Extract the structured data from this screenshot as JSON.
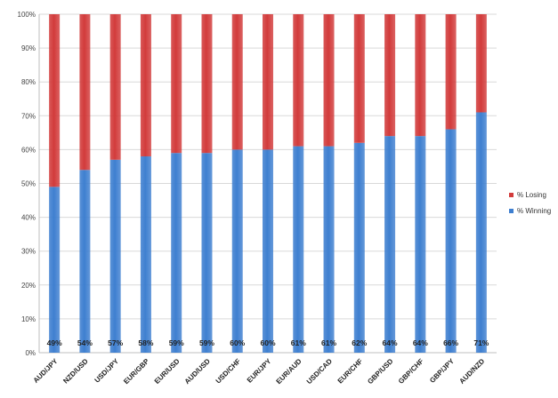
{
  "chart_data": {
    "type": "bar",
    "stacked": true,
    "percent_stacked": true,
    "categories": [
      "AUD/JPY",
      "NZD/USD",
      "USD/JPY",
      "EUR/GBP",
      "EUR/USD",
      "AUD/USD",
      "USD/CHF",
      "EUR/JPY",
      "EUR/AUD",
      "USD/CAD",
      "EUR/CHF",
      "GBP/USD",
      "GBP/CHF",
      "GBP/JPY",
      "AUD/NZD"
    ],
    "series": [
      {
        "name": "% Winning",
        "color": "#3e7fd0",
        "values": [
          49,
          54,
          57,
          58,
          59,
          59,
          60,
          60,
          61,
          61,
          62,
          64,
          64,
          66,
          71
        ]
      },
      {
        "name": "% Losing",
        "color": "#d23b3b",
        "values": [
          51,
          46,
          43,
          42,
          41,
          41,
          40,
          40,
          39,
          39,
          38,
          36,
          36,
          34,
          29
        ]
      }
    ],
    "data_labels": [
      "49%",
      "54%",
      "57%",
      "58%",
      "59%",
      "59%",
      "60%",
      "60%",
      "61%",
      "61%",
      "62%",
      "64%",
      "64%",
      "66%",
      "71%"
    ],
    "y_ticks": [
      "0%",
      "10%",
      "20%",
      "30%",
      "40%",
      "50%",
      "60%",
      "70%",
      "80%",
      "90%",
      "100%"
    ],
    "ylim": [
      0,
      100
    ],
    "grid": true,
    "legend_position": "right",
    "legend_order": [
      "% Losing",
      "% Winning"
    ]
  }
}
